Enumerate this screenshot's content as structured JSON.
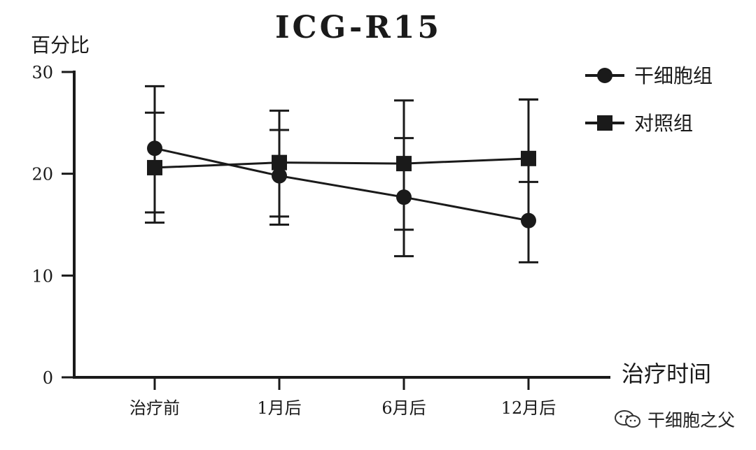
{
  "chart_data": {
    "type": "line",
    "title": "ICG-R15",
    "ylabel": "百分比",
    "xlabel": "治疗时间",
    "categories": [
      "治疗前",
      "1月后",
      "6月后",
      "12月后"
    ],
    "ylim": [
      0,
      30
    ],
    "yticks": [
      0,
      10,
      20,
      30
    ],
    "grid": false,
    "legend_position": "top-right",
    "series": [
      {
        "name": "干细胞组",
        "marker": "circle",
        "values": [
          22.5,
          19.8,
          17.7,
          15.4
        ],
        "error_low": [
          15.2,
          15.0,
          11.9,
          11.3
        ],
        "error_high": [
          28.6,
          26.2,
          27.2,
          27.3
        ]
      },
      {
        "name": "对照组",
        "marker": "square",
        "values": [
          20.6,
          21.1,
          21.0,
          21.5
        ],
        "error_low": [
          16.2,
          15.8,
          14.5,
          19.2
        ],
        "error_high": [
          26.0,
          24.3,
          23.5,
          27.3
        ]
      }
    ],
    "colors": {
      "line": "#1a1a1a",
      "background": "#ffffff"
    }
  },
  "watermark": {
    "icon": "wechat-icon",
    "text": "干细胞之父"
  }
}
